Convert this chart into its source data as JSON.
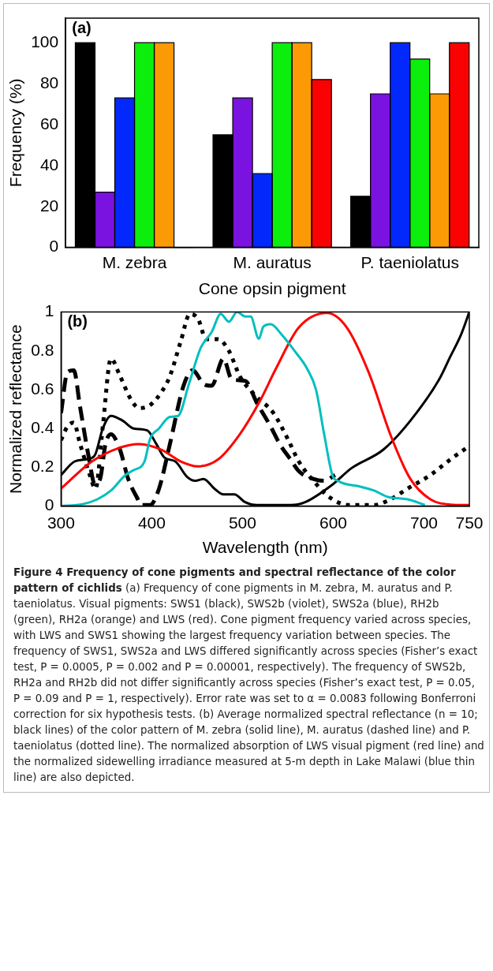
{
  "chart_data": [
    {
      "type": "bar",
      "annotations": [
        "(a)"
      ],
      "xlabel": "Cone opsin pigment",
      "ylabel": "Frequency (%)",
      "categories": [
        "M. zebra",
        "M. auratus",
        "P. taeniolatus"
      ],
      "series": [
        {
          "color": "#000000",
          "values": [
            100,
            55,
            25
          ]
        },
        {
          "color": "#7a12e0",
          "values": [
            27,
            73,
            75
          ]
        },
        {
          "color": "#0328fb",
          "values": [
            73,
            36,
            100
          ]
        },
        {
          "color": "#0cef0c",
          "values": [
            100,
            100,
            92
          ]
        },
        {
          "color": "#fb9a05",
          "values": [
            100,
            100,
            75
          ]
        },
        {
          "color": "#fb0202",
          "values": [
            0,
            82,
            100
          ]
        }
      ],
      "ylim": [
        0,
        112
      ],
      "yticks": [
        0,
        20,
        40,
        60,
        80,
        100
      ],
      "grid": false,
      "legend": false
    },
    {
      "type": "line",
      "annotations": [
        "(b)",
        "Figure 4 Frequency of cone pigments and spectral reflectance of the color pattern of cichlids",
        "(a) Frequency of cone pigments in M. zebra, M. auratus and P. taeniolatus. Visual pigments: SWS1 (black), SWS2b (violet), SWS2a (blue), RH2b (green), RH2a (orange) and LWS (red). Cone pigment frequency varied across species, with LWS and SWS1 showing the largest frequency variation between species. The frequency of SWS1, SWS2a and LWS differed significantly across species (Fisher’s exact test, P = 0.0005, P = 0.002 and P = 0.00001, respectively). The frequency of SWS2b, RH2a and RH2b did not differ significantly across species (Fisher’s exact test, P = 0.05, P = 0.09 and P = 1, respectively). Error rate was set to α = 0.0083 following Bonferroni correction for six hypothesis tests. (b) Average normalized spectral reflectance (n = 10; black lines) of the color pattern of M. zebra (solid line), M. auratus (dashed line) and P. taeniolatus (dotted line). The normalized absorption of LWS visual pigment (red line) and the normalized sidewelling irradiance measured at 5-m depth in Lake Malawi (blue thin line) are also depicted."
      ],
      "xlabel": "Wavelength (nm)",
      "ylabel": "Normalized reflectance",
      "series": [
        {
          "color": "#00bfbf",
          "line_style": "solid",
          "x": [
            300,
            324,
            340,
            355,
            371,
            380,
            392,
            398,
            408,
            420,
            429,
            441,
            454,
            466,
            476,
            485,
            494,
            503,
            509,
            518,
            523,
            531,
            543,
            559,
            571,
            581,
            590,
            599,
            605,
            630,
            645,
            661,
            682,
            701
          ],
          "values": [
            0,
            0.01,
            0.035,
            0.08,
            0.16,
            0.185,
            0.23,
            0.345,
            0.4,
            0.46,
            0.465,
            0.63,
            0.816,
            0.897,
            0.99,
            0.95,
            1,
            0.977,
            0.977,
            0.862,
            0.925,
            0.937,
            0.885,
            0.79,
            0.71,
            0.6,
            0.37,
            0.16,
            0.13,
            0.1,
            0.08,
            0.046,
            0.035,
            0.006
          ]
        },
        {
          "color": "#ff0000",
          "line_style": "solid",
          "x": [
            300,
            334,
            364,
            386,
            411,
            432,
            451,
            473,
            497,
            519,
            537,
            562,
            593,
            615,
            639,
            664,
            685,
            707,
            729,
            750
          ],
          "values": [
            0.09,
            0.23,
            0.3,
            0.32,
            0.29,
            0.23,
            0.205,
            0.24,
            0.37,
            0.54,
            0.71,
            0.92,
            0.995,
            0.92,
            0.69,
            0.356,
            0.14,
            0.035,
            0.008,
            0.005
          ]
        },
        {
          "color": "#000000",
          "line_style": "solid",
          "x": [
            300,
            315,
            327,
            337,
            346,
            355,
            368,
            380,
            395,
            405,
            414,
            426,
            439,
            448,
            457,
            469,
            479,
            491,
            503,
            516,
            553,
            569,
            599,
            620,
            655,
            685,
            717,
            729,
            741,
            750
          ],
          "values": [
            0.16,
            0.23,
            0.24,
            0.26,
            0.4,
            0.465,
            0.44,
            0.4,
            0.39,
            0.32,
            0.25,
            0.23,
            0.15,
            0.13,
            0.14,
            0.09,
            0.06,
            0.06,
            0.02,
            0.005,
            0.005,
            0.02,
            0.11,
            0.195,
            0.29,
            0.44,
            0.655,
            0.77,
            0.885,
            1
          ]
        },
        {
          "color": "#000000",
          "line_style": "dashed",
          "x": [
            300,
            307,
            314,
            321,
            331,
            337,
            343,
            349,
            355,
            365,
            374,
            383,
            389,
            398,
            408,
            420,
            435,
            445,
            457,
            466,
            479,
            488,
            503,
            516,
            531,
            541,
            553,
            562,
            578,
            590,
            602
          ],
          "values": [
            0.48,
            0.69,
            0.7,
            0.51,
            0.24,
            0.115,
            0.14,
            0.32,
            0.37,
            0.29,
            0.14,
            0.05,
            0.005,
            0.005,
            0.09,
            0.32,
            0.62,
            0.7,
            0.63,
            0.62,
            0.76,
            0.655,
            0.645,
            0.53,
            0.41,
            0.32,
            0.24,
            0.18,
            0.14,
            0.13,
            0.16
          ]
        },
        {
          "color": "#000000",
          "line_style": "dotted",
          "x": [
            300,
            307,
            314,
            321,
            331,
            338,
            346,
            355,
            365,
            377,
            386,
            398,
            411,
            420,
            432,
            442,
            451,
            460,
            473,
            485,
            497,
            513,
            534,
            550,
            562,
            581,
            596,
            618,
            645,
            661,
            682,
            707,
            729,
            747
          ],
          "values": [
            0.34,
            0.41,
            0.43,
            0.32,
            0.17,
            0.09,
            0.41,
            0.76,
            0.67,
            0.55,
            0.505,
            0.52,
            0.59,
            0.67,
            0.85,
            0.99,
            0.965,
            0.86,
            0.86,
            0.8,
            0.67,
            0.575,
            0.48,
            0.345,
            0.23,
            0.115,
            0.045,
            0.005,
            0.005,
            0.03,
            0.09,
            0.16,
            0.24,
            0.3
          ]
        }
      ],
      "xlim": [
        300,
        750
      ],
      "xticks": [
        300,
        400,
        500,
        600,
        700,
        750
      ],
      "ylim": [
        0,
        1
      ],
      "yticks": [
        0,
        0.2,
        0.4,
        0.6,
        0.8,
        1
      ],
      "grid": false,
      "legend": false,
      "marker": "none"
    }
  ]
}
